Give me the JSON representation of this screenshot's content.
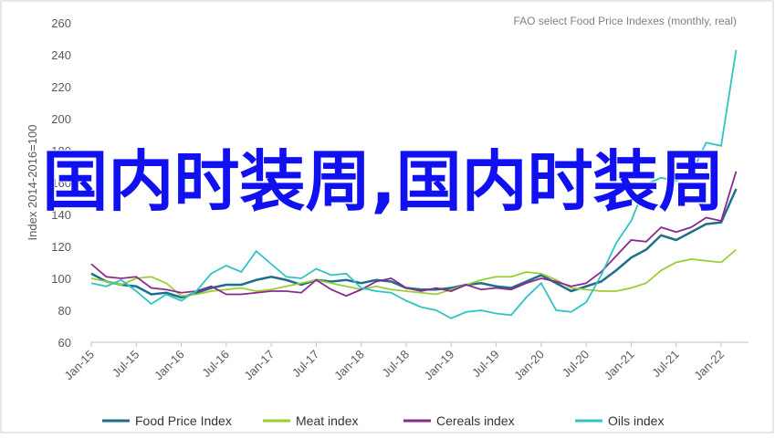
{
  "chart_data": {
    "type": "line",
    "annotation": "FAO select Food Price Indexes (monthly, real)",
    "y_label": "Index 2014-2016=100",
    "overlay_text": "国内时装周,国内时装周",
    "categories": [
      "Jan-15",
      null,
      null,
      "Jul-15",
      null,
      null,
      "Jan-16",
      null,
      null,
      "Jul-16",
      null,
      null,
      "Jan-17",
      null,
      null,
      "Jul-17",
      null,
      null,
      "Jan-18",
      null,
      null,
      "Jul-18",
      null,
      null,
      "Jan-19",
      null,
      null,
      "Jul-19",
      null,
      null,
      "Jan-20",
      null,
      null,
      "Jul-20",
      null,
      null,
      "Jan-21",
      null,
      null,
      "Jul-21",
      null,
      null,
      "Jan-22",
      null
    ],
    "series": [
      {
        "name": "Food Price Index",
        "color": "#1f6e8c",
        "values": [
          103,
          98,
          96,
          95,
          90,
          91,
          88,
          91,
          94,
          96,
          96,
          99,
          101,
          99,
          96,
          99,
          98,
          99,
          97,
          99,
          98,
          94,
          93,
          93,
          94,
          96,
          97,
          95,
          94,
          98,
          102,
          97,
          92,
          95,
          98,
          105,
          113,
          118,
          127,
          124,
          129,
          134,
          135,
          156
        ]
      },
      {
        "name": "Meat index",
        "color": "#9acd32",
        "values": [
          100,
          98,
          96,
          100,
          101,
          97,
          89,
          90,
          92,
          93,
          94,
          92,
          93,
          95,
          97,
          99,
          97,
          95,
          93,
          95,
          93,
          92,
          91,
          90,
          93,
          96,
          99,
          101,
          101,
          104,
          103,
          99,
          94,
          93,
          92,
          92,
          94,
          97,
          105,
          110,
          112,
          111,
          110,
          118
        ]
      },
      {
        "name": "Cereals index",
        "color": "#8b2a8b",
        "values": [
          109,
          101,
          100,
          101,
          94,
          93,
          91,
          92,
          95,
          90,
          90,
          91,
          92,
          92,
          91,
          99,
          93,
          89,
          93,
          98,
          100,
          94,
          92,
          94,
          92,
          96,
          93,
          94,
          93,
          97,
          100,
          98,
          95,
          97,
          104,
          114,
          124,
          123,
          132,
          129,
          132,
          138,
          136,
          167
        ]
      },
      {
        "name": "Oils index",
        "color": "#2ec4c4",
        "values": [
          97,
          95,
          99,
          92,
          84,
          90,
          86,
          92,
          103,
          108,
          104,
          117,
          109,
          101,
          100,
          106,
          102,
          103,
          94,
          92,
          91,
          86,
          82,
          80,
          75,
          79,
          80,
          78,
          77,
          88,
          97,
          80,
          79,
          85,
          102,
          122,
          136,
          159,
          163,
          161,
          165,
          185,
          183,
          243
        ]
      }
    ],
    "ylim": [
      60,
      260
    ],
    "yticks": [
      60,
      80,
      100,
      120,
      140,
      160,
      180,
      200,
      220,
      240,
      260
    ],
    "grid": false
  }
}
